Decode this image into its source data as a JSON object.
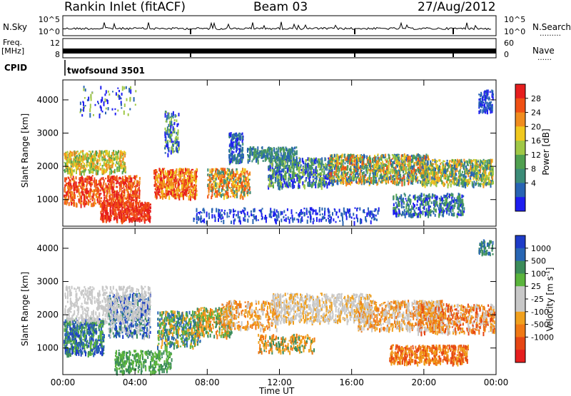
{
  "header": {
    "station": "Rankin Inlet (fitACF)",
    "beam": "Beam 03",
    "date": "27/Aug/2012"
  },
  "panels": {
    "nsky_label": "N.Sky",
    "nsearch_label": "N.Search",
    "freq_label_1": "Freq.",
    "freq_label_2": "[MHz]",
    "nave_label": "Nave",
    "cpid_label": "CPID",
    "cpid_value": "twofsound 3501",
    "legend_dots": "………",
    "nave_dots": "……"
  },
  "colors": {
    "power": [
      "#1e1ef0",
      "#2864b4",
      "#3c8c78",
      "#50a050",
      "#a0c846",
      "#f0c81e",
      "#f08c1e",
      "#f05014",
      "#e61e1e"
    ],
    "velocity": [
      "#1e3cc8",
      "#2866b4",
      "#3c8c5a",
      "#5ab43c",
      "#c8c8c8",
      "#c8c8c8",
      "#f0a01e",
      "#f07814",
      "#e64614",
      "#e61e1e"
    ]
  },
  "chart_data": [
    {
      "type": "line",
      "title": "N.Sky / N.Search",
      "y_tick_labels": [
        "10^5",
        "10^0"
      ],
      "right_tick_labels": [
        "10^5",
        "10^0"
      ],
      "x_range_hours": [
        0,
        24
      ]
    },
    {
      "type": "line",
      "title": "Freq. / Nave",
      "left_ticks": [
        12,
        8
      ],
      "right_ticks": [
        60,
        0
      ]
    },
    {
      "type": "heatmap",
      "panel": "power",
      "xlabel": "",
      "ylabel": "Slant Range [km]",
      "y_ticks": [
        1000,
        2000,
        3000,
        4000
      ],
      "ylim": [
        200,
        4600
      ],
      "x_range_hours": [
        0,
        24
      ],
      "colorbar_label": "Power [dB]",
      "colorbar_ticks": [
        4,
        8,
        12,
        16,
        20,
        24,
        28
      ],
      "colorbar_range": [
        0,
        32
      ]
    },
    {
      "type": "heatmap",
      "panel": "velocity",
      "xlabel": "Time UT",
      "ylabel": "Slant Range [km]",
      "y_ticks": [
        1000,
        2000,
        3000,
        4000
      ],
      "ylim": [
        200,
        4600
      ],
      "x_range_hours": [
        0,
        24
      ],
      "x_ticks": [
        "00:00",
        "04:00",
        "08:00",
        "12:00",
        "16:00",
        "20:00",
        "00:00"
      ],
      "colorbar_label": "Velocity [m s^-1]",
      "colorbar_ticks": [
        "1000",
        "500",
        "100",
        "25",
        "-25",
        "-100",
        "-500",
        "-1000"
      ]
    }
  ]
}
